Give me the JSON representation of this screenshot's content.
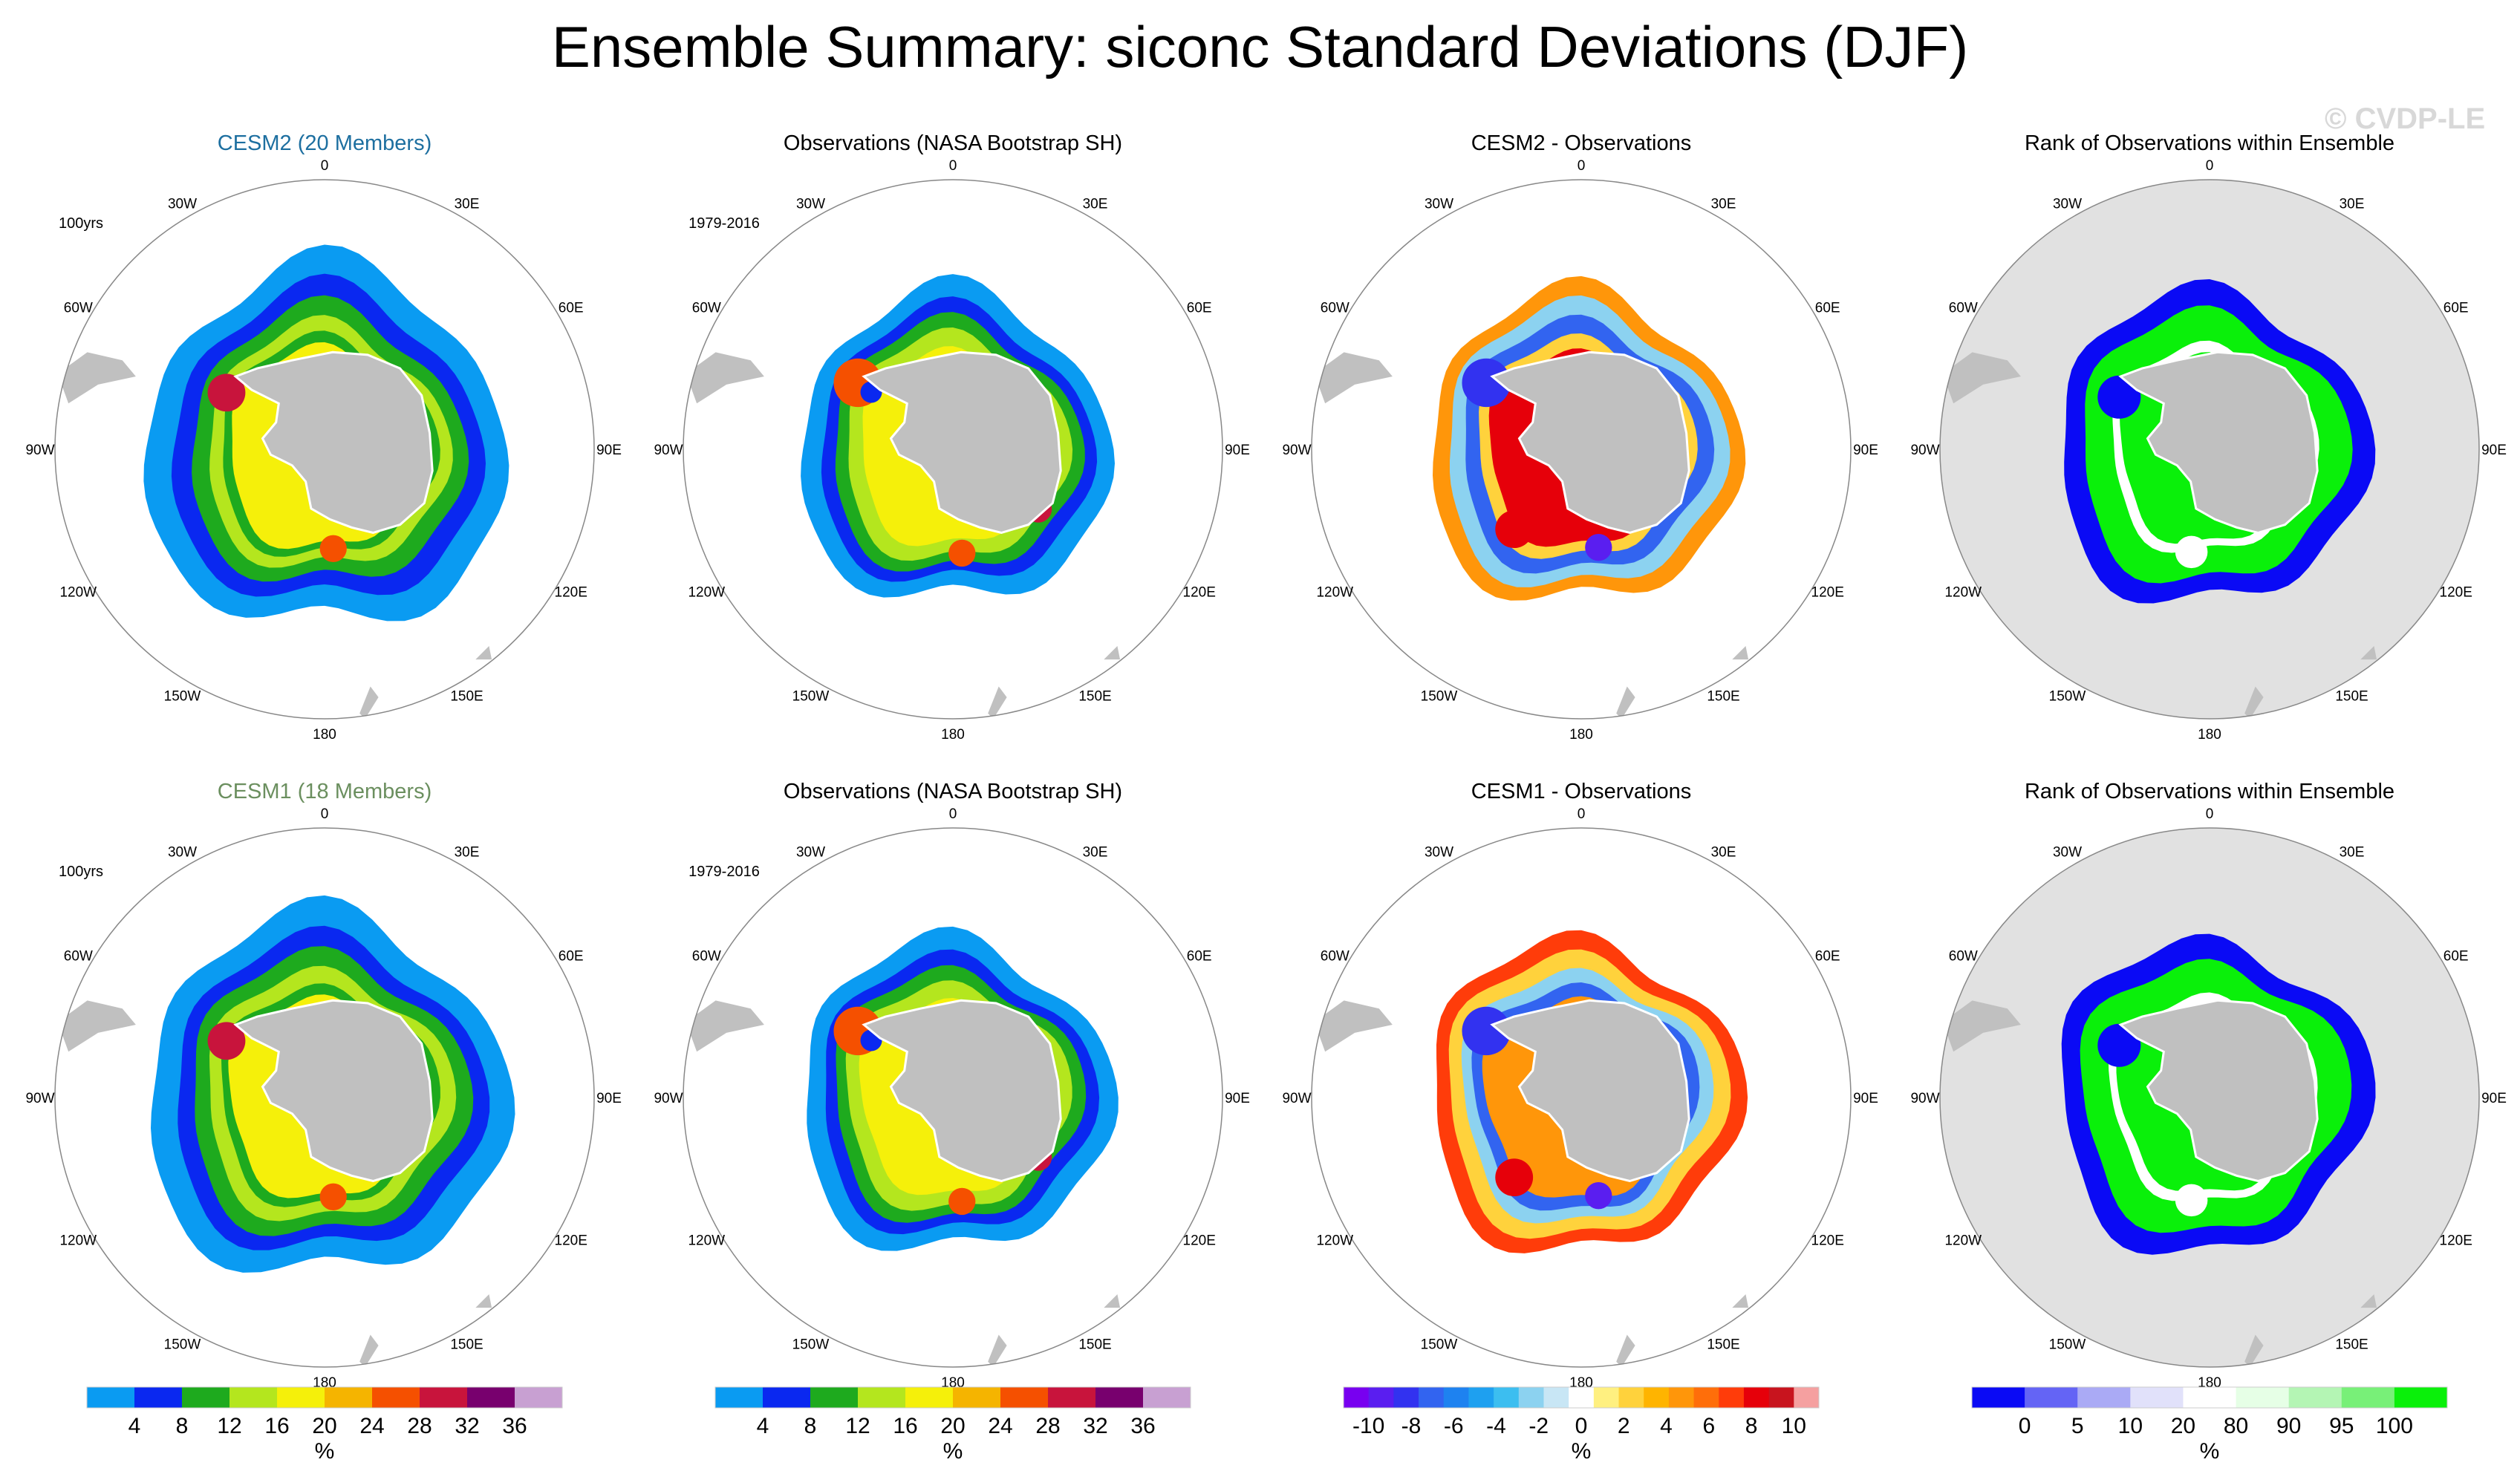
{
  "title": "Ensemble Summary: siconc Standard Deviations (DJF)",
  "watermark": "© CVDP-LE",
  "colors": {
    "land": "#c0c0c0",
    "ocean_gray": "#e1e1e1",
    "circle": "#888888",
    "title_cesm2": "#1d6fa0",
    "title_cesm1": "#6b8f5f"
  },
  "longitude_labels": [
    "0",
    "30E",
    "60E",
    "90E",
    "120E",
    "150E",
    "180",
    "150W",
    "120W",
    "90W",
    "60W",
    "30W"
  ],
  "colorbars": [
    {
      "name": "std-dev",
      "colors": [
        "#0a9bf2",
        "#0a28f0",
        "#1eaa1e",
        "#b4e61e",
        "#f5f00a",
        "#f5b400",
        "#f55000",
        "#c8143c",
        "#78006e",
        "#c8a0d2"
      ],
      "labels": [
        "4",
        "8",
        "12",
        "16",
        "20",
        "24",
        "28",
        "32",
        "36"
      ],
      "unit": "%"
    },
    {
      "name": "std-dev",
      "colors": [
        "#0a9bf2",
        "#0a28f0",
        "#1eaa1e",
        "#b4e61e",
        "#f5f00a",
        "#f5b400",
        "#f55000",
        "#c8143c",
        "#78006e",
        "#c8a0d2"
      ],
      "labels": [
        "4",
        "8",
        "12",
        "16",
        "20",
        "24",
        "28",
        "32",
        "36"
      ],
      "unit": "%"
    },
    {
      "name": "difference",
      "colors": [
        "#7800f0",
        "#5a1ef0",
        "#3232f0",
        "#3264f0",
        "#1e82f0",
        "#1ea0f0",
        "#3cbef0",
        "#8cd2f0",
        "#c8e6f5",
        "#ffffff",
        "#fff080",
        "#ffd23c",
        "#ffb400",
        "#ff960a",
        "#ff6e0a",
        "#ff3c0a",
        "#e6000a",
        "#c8141e",
        "#f5a0a0"
      ],
      "labels": [
        "-10",
        "-8",
        "-6",
        "-4",
        "-2",
        "0",
        "2",
        "4",
        "6",
        "8",
        "10"
      ],
      "unit": "%"
    },
    {
      "name": "rank",
      "colors": [
        "#0a0af5",
        "#6464f5",
        "#aaaaf5",
        "#e1e1fa",
        "#ffffff",
        "#e6ffe6",
        "#b4f5b4",
        "#78f078",
        "#0af00a"
      ],
      "labels": [
        "0",
        "5",
        "10",
        "20",
        "80",
        "90",
        "95",
        "100"
      ],
      "unit": "%"
    }
  ],
  "rows": [
    {
      "panels": [
        {
          "title": "CESM2 (20 Members)",
          "period": "100yrs",
          "kind": "std",
          "extent": "large",
          "title_color": "cesm2",
          "zones": [
            [
              "#0a9bf2",
              1.0
            ],
            [
              "#0a28f0",
              0.86
            ],
            [
              "#1eaa1e",
              0.76
            ],
            [
              "#b4e61e",
              0.67
            ],
            [
              "#1eaa1e",
              0.6
            ],
            [
              "#f5f00a",
              0.55
            ]
          ],
          "spots": [
            {
              "r": 0.42,
              "deg": 300,
              "s": 0.07,
              "c": "#c8143c"
            },
            {
              "r": 0.37,
              "deg": 175,
              "s": 0.05,
              "c": "#f55000"
            }
          ]
        },
        {
          "title": "Observations (NASA Bootstrap SH)",
          "period": "1979-2016",
          "kind": "std",
          "extent": "obs",
          "title_color": "default",
          "zones": [
            [
              "#0a9bf2",
              1.0
            ],
            [
              "#0a28f0",
              0.88
            ],
            [
              "#1eaa1e",
              0.8
            ],
            [
              "#b4e61e",
              0.72
            ],
            [
              "#f5f00a",
              0.62
            ]
          ],
          "spots": [
            {
              "r": 0.5,
              "deg": 305,
              "s": 0.09,
              "c": "#f55000"
            },
            {
              "r": 0.43,
              "deg": 305,
              "s": 0.04,
              "c": "#0a28f0"
            },
            {
              "r": 0.45,
              "deg": 175,
              "s": 0.05,
              "c": "#f55000"
            },
            {
              "r": 0.45,
              "deg": 125,
              "s": 0.05,
              "c": "#c8143c"
            }
          ]
        },
        {
          "title": "CESM2 - Observations",
          "period": "",
          "kind": "diff",
          "extent": "obs",
          "title_color": "default",
          "zones": [
            [
              "#ff960a",
              1.0
            ],
            [
              "#8cd2f0",
              0.9
            ],
            [
              "#3264f0",
              0.8
            ],
            [
              "#ffd23c",
              0.7
            ],
            [
              "#e6000a",
              0.62
            ]
          ],
          "spots": [
            {
              "r": 0.5,
              "deg": 305,
              "s": 0.09,
              "c": "#3232f0"
            },
            {
              "r": 0.45,
              "deg": 220,
              "s": 0.07,
              "c": "#e6000a"
            },
            {
              "r": 0.43,
              "deg": 170,
              "s": 0.05,
              "c": "#5a1ef0"
            }
          ]
        },
        {
          "title": "Rank of Observations within Ensemble",
          "period": "",
          "kind": "rank",
          "extent": "obs",
          "title_color": "default",
          "zones": [
            [
              "#0a0af5",
              1.0
            ],
            [
              "#0af00a",
              0.86
            ],
            [
              "#ffffff",
              0.66
            ],
            [
              "#0af00a",
              0.6
            ]
          ],
          "spots": [
            {
              "r": 0.45,
              "deg": 300,
              "s": 0.08,
              "c": "#0a0af5"
            },
            {
              "r": 0.45,
              "deg": 190,
              "s": 0.06,
              "c": "#ffffff"
            }
          ]
        }
      ]
    },
    {
      "panels": [
        {
          "title": "CESM1 (18 Members)",
          "period": "100yrs",
          "kind": "std",
          "extent": "large",
          "title_color": "cesm1",
          "zones": [
            [
              "#0a9bf2",
              1.0
            ],
            [
              "#0a28f0",
              0.86
            ],
            [
              "#1eaa1e",
              0.77
            ],
            [
              "#b4e61e",
              0.68
            ],
            [
              "#1eaa1e",
              0.6
            ],
            [
              "#f5f00a",
              0.55
            ]
          ],
          "spots": [
            {
              "r": 0.42,
              "deg": 300,
              "s": 0.07,
              "c": "#c8143c"
            },
            {
              "r": 0.37,
              "deg": 175,
              "s": 0.05,
              "c": "#f55000"
            }
          ]
        },
        {
          "title": "Observations (NASA Bootstrap SH)",
          "period": "1979-2016",
          "kind": "std",
          "extent": "obs",
          "title_color": "default",
          "zones": [
            [
              "#0a9bf2",
              1.0
            ],
            [
              "#0a28f0",
              0.88
            ],
            [
              "#1eaa1e",
              0.8
            ],
            [
              "#b4e61e",
              0.72
            ],
            [
              "#f5f00a",
              0.62
            ]
          ],
          "spots": [
            {
              "r": 0.5,
              "deg": 305,
              "s": 0.09,
              "c": "#f55000"
            },
            {
              "r": 0.43,
              "deg": 305,
              "s": 0.04,
              "c": "#0a28f0"
            },
            {
              "r": 0.45,
              "deg": 175,
              "s": 0.05,
              "c": "#f55000"
            },
            {
              "r": 0.45,
              "deg": 125,
              "s": 0.05,
              "c": "#c8143c"
            }
          ]
        },
        {
          "title": "CESM1 - Observations",
          "period": "",
          "kind": "diff",
          "extent": "obs",
          "title_color": "default",
          "zones": [
            [
              "#ff3c0a",
              1.0
            ],
            [
              "#ffd23c",
              0.9
            ],
            [
              "#8cd2f0",
              0.8
            ],
            [
              "#3264f0",
              0.72
            ],
            [
              "#ff960a",
              0.64
            ]
          ],
          "spots": [
            {
              "r": 0.5,
              "deg": 305,
              "s": 0.09,
              "c": "#3232f0"
            },
            {
              "r": 0.45,
              "deg": 220,
              "s": 0.07,
              "c": "#e6000a"
            },
            {
              "r": 0.43,
              "deg": 170,
              "s": 0.05,
              "c": "#5a1ef0"
            }
          ]
        },
        {
          "title": "Rank of Observations within Ensemble",
          "period": "",
          "kind": "rank",
          "extent": "obs",
          "title_color": "default",
          "zones": [
            [
              "#0a0af5",
              1.0
            ],
            [
              "#0af00a",
              0.86
            ],
            [
              "#ffffff",
              0.66
            ],
            [
              "#0af00a",
              0.6
            ]
          ],
          "spots": [
            {
              "r": 0.45,
              "deg": 300,
              "s": 0.08,
              "c": "#0a0af5"
            },
            {
              "r": 0.45,
              "deg": 190,
              "s": 0.06,
              "c": "#ffffff"
            }
          ]
        }
      ]
    }
  ],
  "chart_data": {
    "type": "heatmap",
    "title": "Ensemble Summary: siconc Standard Deviations (DJF)",
    "projection": "south polar stereographic",
    "variable": "siconc standard deviation",
    "season": "DJF",
    "longitude_ticks": [
      "0",
      "30E",
      "60E",
      "90E",
      "120E",
      "150E",
      "180",
      "150W",
      "120W",
      "90W",
      "60W",
      "30W"
    ],
    "panels": [
      {
        "title": "CESM2 (20 Members)",
        "period": "100yrs",
        "colorbar_levels": [
          4,
          8,
          12,
          16,
          20,
          24,
          28,
          32,
          36
        ],
        "unit": "%"
      },
      {
        "title": "Observations (NASA Bootstrap SH)",
        "period": "1979-2016",
        "colorbar_levels": [
          4,
          8,
          12,
          16,
          20,
          24,
          28,
          32,
          36
        ],
        "unit": "%"
      },
      {
        "title": "CESM2 - Observations",
        "colorbar_levels": [
          -10,
          -8,
          -6,
          -4,
          -2,
          0,
          2,
          4,
          6,
          8,
          10
        ],
        "unit": "%"
      },
      {
        "title": "Rank of Observations within Ensemble",
        "colorbar_levels": [
          0,
          5,
          10,
          20,
          80,
          90,
          95,
          100
        ],
        "unit": "%"
      },
      {
        "title": "CESM1 (18 Members)",
        "period": "100yrs",
        "colorbar_levels": [
          4,
          8,
          12,
          16,
          20,
          24,
          28,
          32,
          36
        ],
        "unit": "%"
      },
      {
        "title": "Observations (NASA Bootstrap SH)",
        "period": "1979-2016",
        "colorbar_levels": [
          4,
          8,
          12,
          16,
          20,
          24,
          28,
          32,
          36
        ],
        "unit": "%"
      },
      {
        "title": "CESM1 - Observations",
        "colorbar_levels": [
          -10,
          -8,
          -6,
          -4,
          -2,
          0,
          2,
          4,
          6,
          8,
          10
        ],
        "unit": "%"
      },
      {
        "title": "Rank of Observations within Ensemble",
        "colorbar_levels": [
          0,
          5,
          10,
          20,
          80,
          90,
          95,
          100
        ],
        "unit": "%"
      }
    ]
  }
}
